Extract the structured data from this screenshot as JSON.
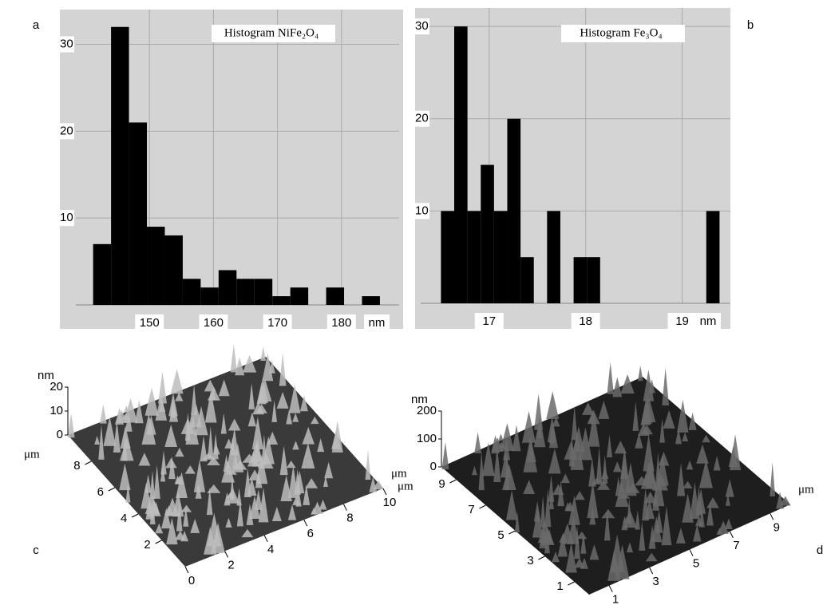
{
  "chart_data": [
    {
      "type": "histogram",
      "panel": "a",
      "title": "Histogram NiFe₂O₄",
      "xlabel": "nm",
      "color": "#000000",
      "bins": [
        141.2,
        144,
        146.8,
        149.6,
        152.4,
        155.2,
        158,
        160.8,
        163.6,
        166.4,
        169.2,
        172,
        174.8,
        177.6,
        180.4,
        183.2,
        186
      ],
      "values": [
        7,
        32,
        21,
        9,
        8,
        3,
        2,
        4,
        3,
        3,
        1,
        2,
        0,
        2,
        0,
        1
      ],
      "xlim": [
        138.5,
        189
      ],
      "xticks": [
        150,
        160,
        170,
        180
      ],
      "ylim": [
        0,
        34
      ],
      "yticks": [
        10,
        20,
        30
      ],
      "grid": true
    },
    {
      "type": "histogram",
      "panel": "b",
      "title": "Histogram Fe₃O₄",
      "xlabel": "nm",
      "color": "#000000",
      "bins": [
        16.5,
        16.6375,
        16.775,
        16.9125,
        17.05,
        17.1875,
        17.325,
        17.4625,
        17.6,
        17.7375,
        17.875,
        18.0125,
        18.15,
        18.2875,
        18.425,
        18.5625,
        18.7,
        18.8375,
        18.975,
        19.1125,
        19.25,
        19.3875
      ],
      "values": [
        10,
        30,
        10,
        15,
        10,
        20,
        5,
        0,
        10,
        0,
        5,
        5,
        0,
        0,
        0,
        0,
        0,
        0,
        0,
        0,
        10
      ],
      "xlim": [
        16.29,
        19.5
      ],
      "xticks": [
        17,
        18,
        19
      ],
      "ylim": [
        0,
        32
      ],
      "yticks": [
        10,
        20,
        30
      ],
      "grid": true
    },
    {
      "type": "surface",
      "panel": "c",
      "xlabel": "μm",
      "ylabel": "μm",
      "zlabel": "nm",
      "xlim": [
        0,
        10
      ],
      "xticks": [
        0,
        2,
        4,
        6,
        8,
        10
      ],
      "ylim": [
        0,
        10
      ],
      "yticks": [
        2,
        4,
        6,
        8
      ],
      "zlim": [
        0,
        20
      ],
      "zticks": [
        0,
        10,
        20
      ]
    },
    {
      "type": "surface",
      "panel": "d",
      "xlabel": "μm",
      "ylabel": "μm",
      "zlabel": "nm",
      "xlim": [
        0,
        10
      ],
      "xticks": [
        1,
        3,
        5,
        7,
        9
      ],
      "ylim": [
        0,
        10
      ],
      "yticks": [
        1,
        3,
        5,
        7,
        9
      ],
      "zlim": [
        0,
        200
      ],
      "zticks": [
        0,
        100,
        200
      ]
    }
  ]
}
